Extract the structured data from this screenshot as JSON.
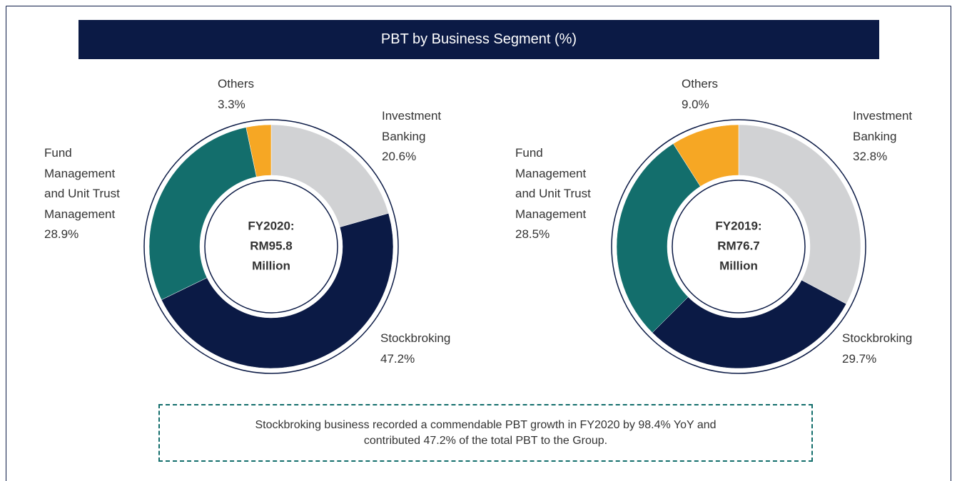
{
  "title": "PBT by Business Segment (%)",
  "chart_data": [
    {
      "type": "donut",
      "center_label": [
        "FY2020:",
        "RM95.8",
        "Million"
      ],
      "categories": [
        "Investment Banking",
        "Stockbroking",
        "Fund Management and Unit Trust Management",
        "Others"
      ],
      "values": [
        20.6,
        47.2,
        28.9,
        3.3
      ],
      "value_labels": [
        "20.6%",
        "47.2%",
        "28.9%",
        "3.3%"
      ],
      "colors": [
        "#d1d2d4",
        "#0b1a45",
        "#136e6c",
        "#f6a724"
      ]
    },
    {
      "type": "donut",
      "center_label": [
        "FY2019:",
        "RM76.7",
        "Million"
      ],
      "categories": [
        "Investment Banking",
        "Stockbroking",
        "Fund Management and Unit Trust Management",
        "Others"
      ],
      "values": [
        32.8,
        29.7,
        28.5,
        9.0
      ],
      "value_labels": [
        "32.8%",
        "29.7%",
        "28.5%",
        "9.0%"
      ],
      "colors": [
        "#d1d2d4",
        "#0b1a45",
        "#136e6c",
        "#f6a724"
      ]
    }
  ],
  "note": "Stockbroking business recorded a commendable PBT growth in FY2020 by 98.4% YoY and contributed 47.2% of the total PBT to the Group."
}
